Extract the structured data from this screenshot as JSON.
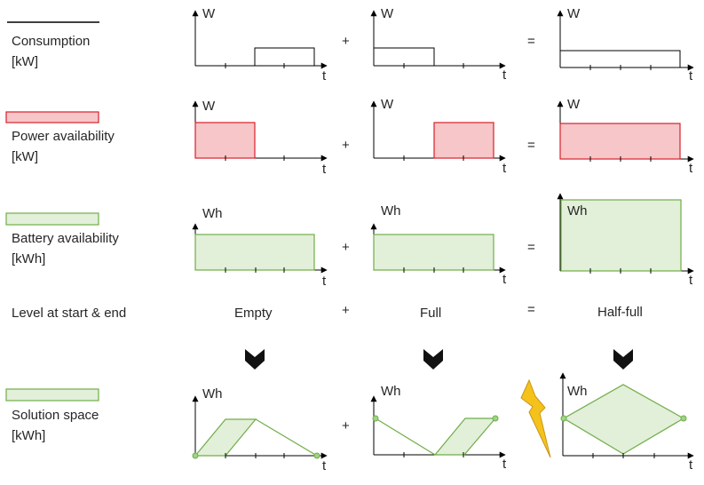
{
  "rows": [
    {
      "id": "consumption",
      "label_line1": "Consumption",
      "label_line2": "[kW]",
      "axis_unit": "W"
    },
    {
      "id": "power",
      "label_line1": "Power  availability",
      "label_line2": "[kW]",
      "axis_unit": "W"
    },
    {
      "id": "battery",
      "label_line1": "Battery availability",
      "label_line2": "[kWh]",
      "axis_unit": "Wh"
    },
    {
      "id": "level",
      "label_line1": "Level at start & end"
    },
    {
      "id": "solution",
      "label_line1": "Solution space",
      "label_line2": "[kWh]",
      "axis_unit": "Wh"
    }
  ],
  "time_axis_label": "t",
  "operators": {
    "plus": "+",
    "equals": "="
  },
  "levels": [
    "Empty",
    "Full",
    "Half-full"
  ],
  "colors": {
    "consumption_line": "#000000",
    "power_fill": "#f6c6c9",
    "power_stroke": "#d9202a",
    "battery_fill": "#e2efd9",
    "battery_stroke": "#70ad47",
    "arrow": "#111111",
    "lightning_fill": "#f5c21b",
    "lightning_stroke": "#c9961a",
    "text": "#262626"
  },
  "icons": [
    "chevron-down-icon",
    "lightning-bolt-icon"
  ]
}
